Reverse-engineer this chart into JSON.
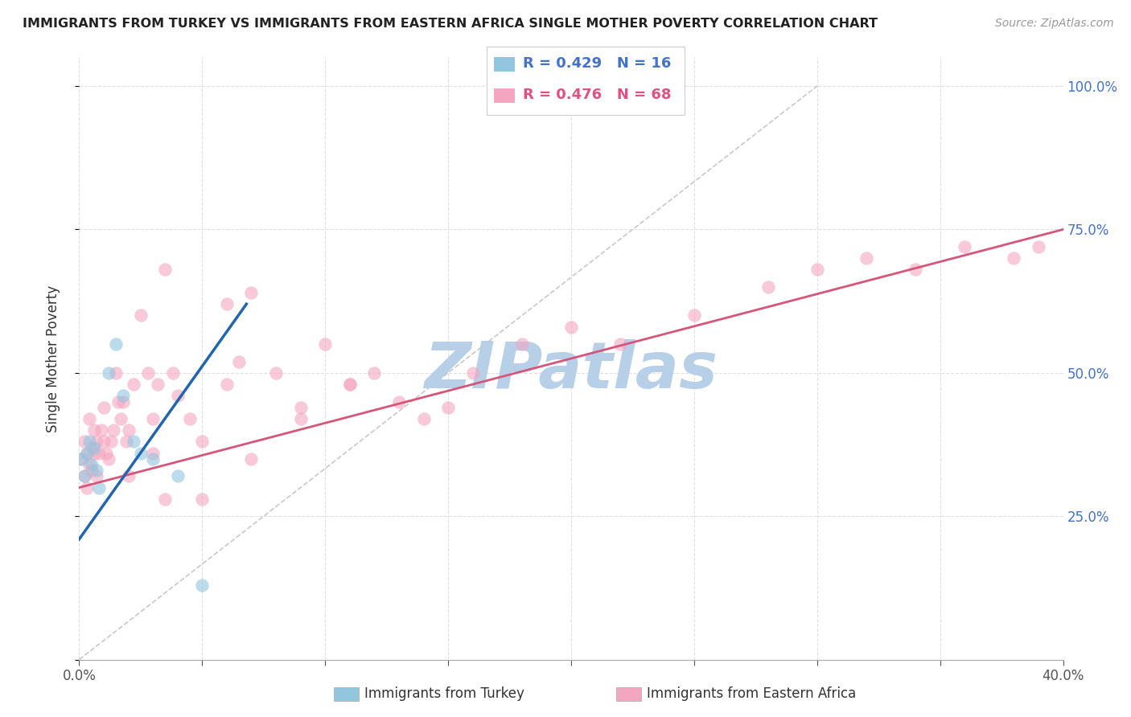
{
  "title": "IMMIGRANTS FROM TURKEY VS IMMIGRANTS FROM EASTERN AFRICA SINGLE MOTHER POVERTY CORRELATION CHART",
  "source": "Source: ZipAtlas.com",
  "ylabel": "Single Mother Poverty",
  "y_ticks": [
    0.0,
    0.25,
    0.5,
    0.75,
    1.0
  ],
  "x_ticks": [
    0.0,
    0.05,
    0.1,
    0.15,
    0.2,
    0.25,
    0.3,
    0.35,
    0.4
  ],
  "xlim": [
    0.0,
    0.4
  ],
  "ylim": [
    0.0,
    1.05
  ],
  "legend_turkey_R": "R = 0.429",
  "legend_turkey_N": "N = 16",
  "legend_africa_R": "R = 0.476",
  "legend_africa_N": "N = 68",
  "legend_label_turkey": "Immigrants from Turkey",
  "legend_label_africa": "Immigrants from Eastern Africa",
  "color_turkey": "#92c5de",
  "color_africa": "#f4a6c0",
  "color_trend_turkey": "#2166ac",
  "color_trend_africa": "#d6567a",
  "watermark": "ZIPatlas",
  "watermark_color": "#b8cfe8",
  "turkey_scatter_x": [
    0.001,
    0.002,
    0.003,
    0.004,
    0.005,
    0.006,
    0.007,
    0.008,
    0.012,
    0.015,
    0.018,
    0.022,
    0.025,
    0.03,
    0.04,
    0.05
  ],
  "turkey_scatter_y": [
    0.35,
    0.32,
    0.36,
    0.38,
    0.34,
    0.37,
    0.33,
    0.3,
    0.5,
    0.55,
    0.46,
    0.38,
    0.36,
    0.35,
    0.32,
    0.13
  ],
  "africa_scatter_x": [
    0.001,
    0.002,
    0.002,
    0.003,
    0.003,
    0.004,
    0.004,
    0.005,
    0.005,
    0.006,
    0.006,
    0.007,
    0.007,
    0.008,
    0.009,
    0.01,
    0.01,
    0.011,
    0.012,
    0.013,
    0.014,
    0.015,
    0.016,
    0.017,
    0.018,
    0.019,
    0.02,
    0.022,
    0.025,
    0.028,
    0.03,
    0.032,
    0.035,
    0.038,
    0.04,
    0.045,
    0.05,
    0.06,
    0.065,
    0.07,
    0.08,
    0.09,
    0.1,
    0.11,
    0.12,
    0.13,
    0.14,
    0.15,
    0.16,
    0.18,
    0.2,
    0.22,
    0.25,
    0.28,
    0.3,
    0.32,
    0.34,
    0.36,
    0.38,
    0.39,
    0.05,
    0.07,
    0.09,
    0.11,
    0.03,
    0.02,
    0.035,
    0.06
  ],
  "africa_scatter_y": [
    0.35,
    0.38,
    0.32,
    0.36,
    0.3,
    0.34,
    0.42,
    0.37,
    0.33,
    0.4,
    0.36,
    0.38,
    0.32,
    0.36,
    0.4,
    0.38,
    0.44,
    0.36,
    0.35,
    0.38,
    0.4,
    0.5,
    0.45,
    0.42,
    0.45,
    0.38,
    0.4,
    0.48,
    0.6,
    0.5,
    0.42,
    0.48,
    0.68,
    0.5,
    0.46,
    0.42,
    0.38,
    0.48,
    0.52,
    0.64,
    0.5,
    0.44,
    0.55,
    0.48,
    0.5,
    0.45,
    0.42,
    0.44,
    0.5,
    0.55,
    0.58,
    0.55,
    0.6,
    0.65,
    0.68,
    0.7,
    0.68,
    0.72,
    0.7,
    0.72,
    0.28,
    0.35,
    0.42,
    0.48,
    0.36,
    0.32,
    0.28,
    0.62
  ],
  "turkey_trend_x": [
    0.0,
    0.068
  ],
  "turkey_trend_y": [
    0.21,
    0.62
  ],
  "africa_trend_x": [
    0.0,
    0.4
  ],
  "africa_trend_y": [
    0.3,
    0.75
  ],
  "ref_line_x": [
    0.0,
    0.3
  ],
  "ref_line_y": [
    0.0,
    1.0
  ]
}
